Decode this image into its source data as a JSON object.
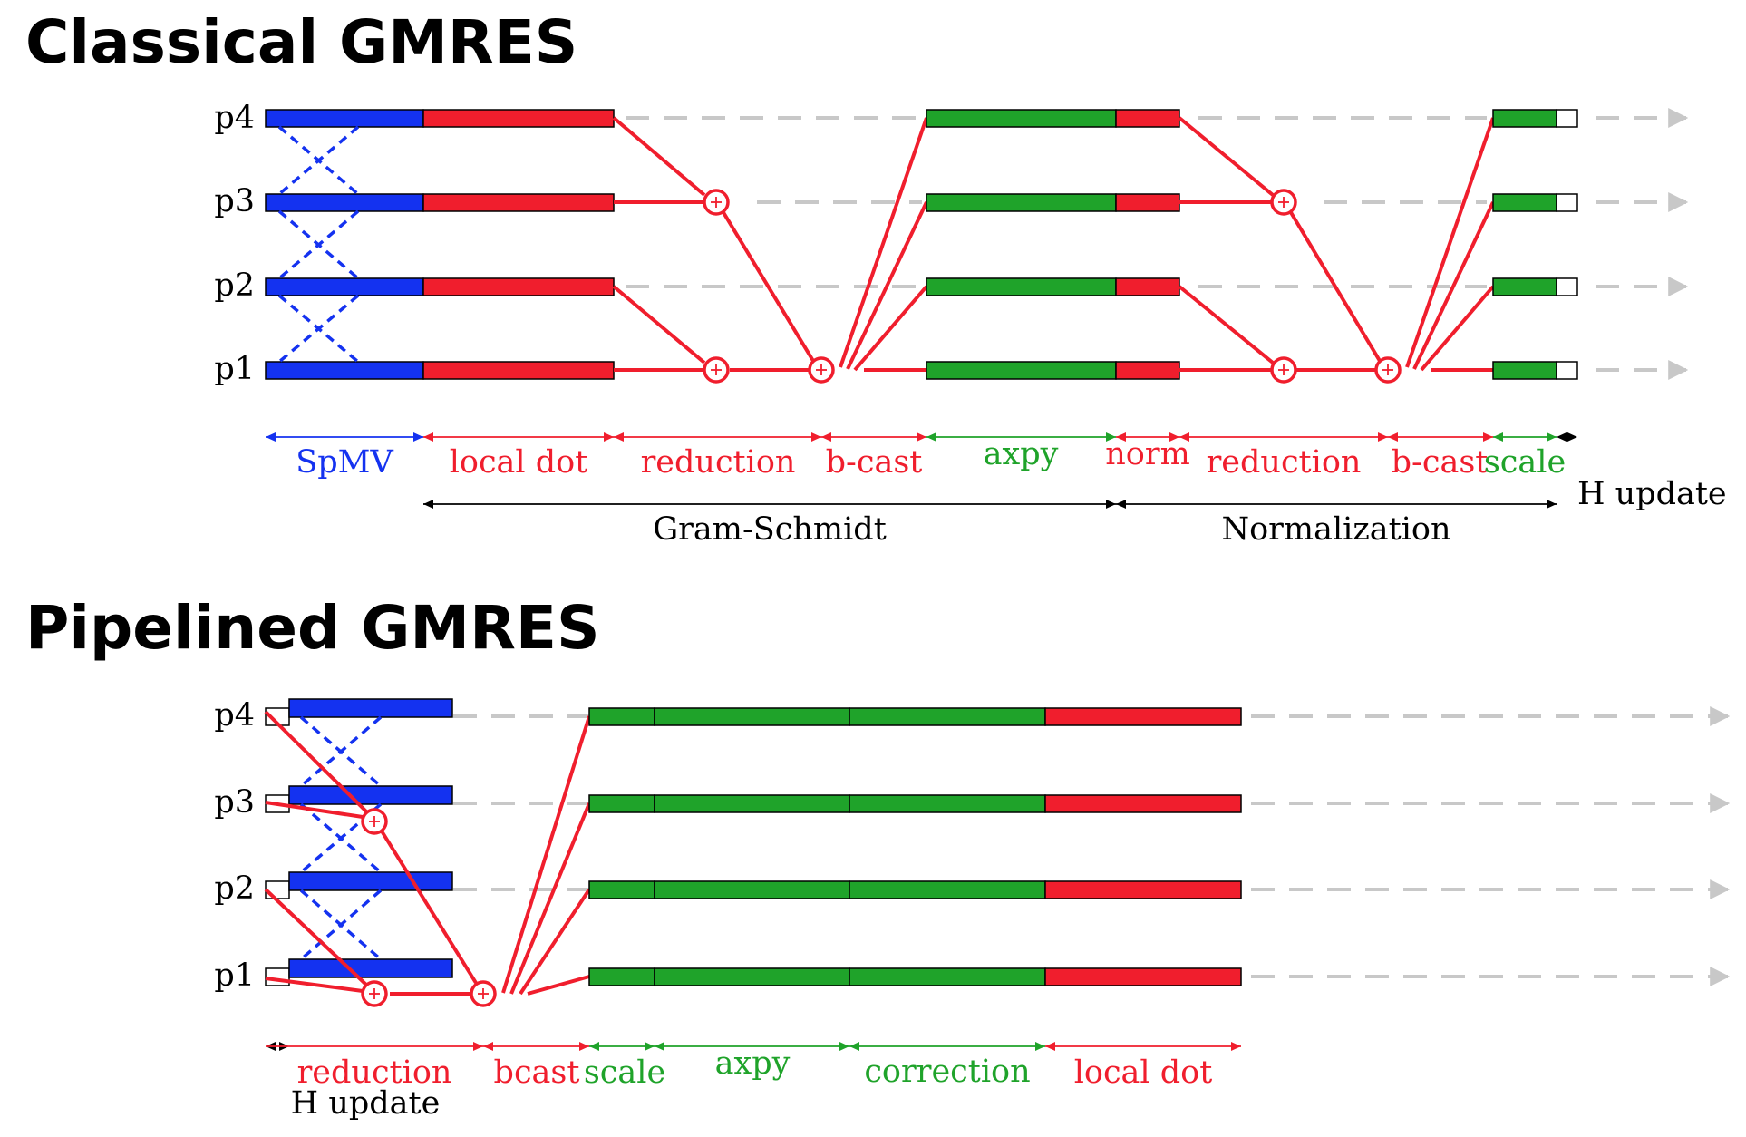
{
  "colors": {
    "spmv": "#1432f0",
    "reduce": "#f01e2d",
    "axpy": "#1fa32a",
    "arrow": "#c8c8c8",
    "text": "#000000"
  },
  "classical": {
    "title": "Classical GMRES",
    "processes": [
      "p4",
      "p3",
      "p2",
      "p1"
    ],
    "phases": [
      {
        "label": "SpMV",
        "color": "spmv"
      },
      {
        "label": "local dot",
        "color": "reduce"
      },
      {
        "label": "reduction",
        "color": "reduce"
      },
      {
        "label": "b-cast",
        "color": "reduce"
      },
      {
        "label": "axpy",
        "color": "axpy"
      },
      {
        "label": "norm",
        "color": "reduce"
      },
      {
        "label": "reduction",
        "color": "reduce"
      },
      {
        "label": "b-cast",
        "color": "reduce"
      },
      {
        "label": "scale",
        "color": "axpy"
      },
      {
        "label": "H update",
        "color": "text"
      }
    ],
    "groups": [
      {
        "label": "Gram-Schmidt"
      },
      {
        "label": "Normalization"
      }
    ]
  },
  "pipelined": {
    "title": "Pipelined GMRES",
    "processes": [
      "p4",
      "p3",
      "p2",
      "p1"
    ],
    "phases": [
      {
        "label": "H update",
        "color": "text"
      },
      {
        "label": "reduction",
        "color": "reduce"
      },
      {
        "label": "bcast",
        "color": "reduce"
      },
      {
        "label": "scale",
        "color": "axpy"
      },
      {
        "label": "axpy",
        "color": "axpy"
      },
      {
        "label": "correction",
        "color": "axpy"
      },
      {
        "label": "local dot",
        "color": "reduce"
      }
    ]
  }
}
